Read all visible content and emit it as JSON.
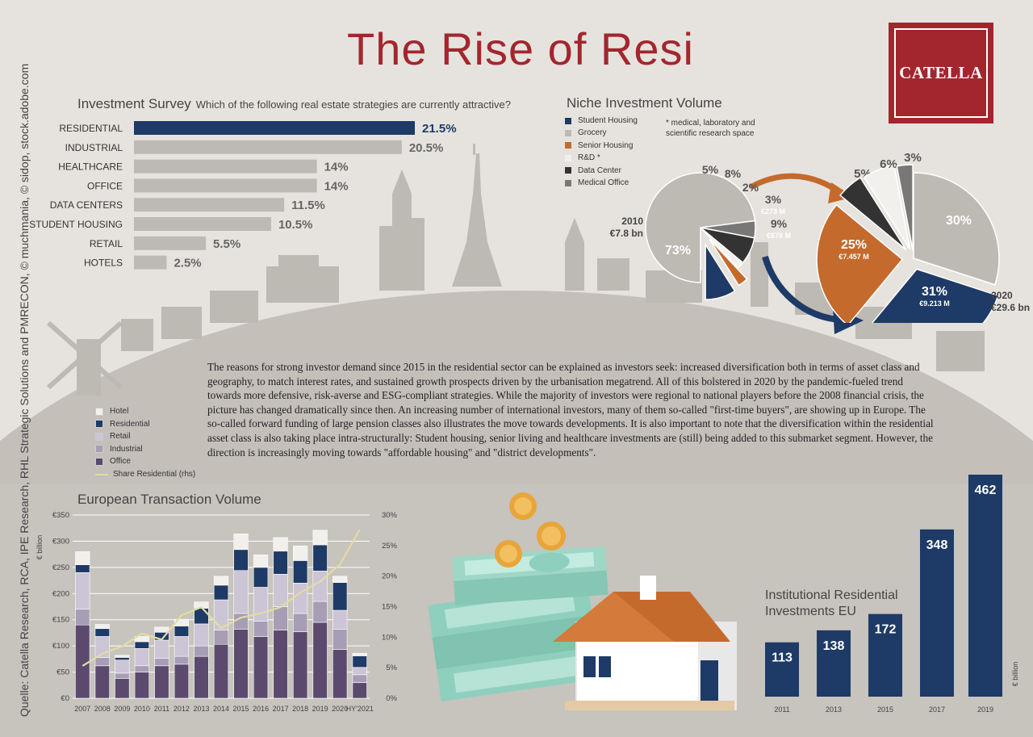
{
  "title": "The Rise of Resi",
  "logo_text": "CATELLA",
  "credit": "Quelle: Catella Research, RCA, IPE Research, RHL Strategic Solutions and PMRECON, © muchmania, © sidop, stock.adobe.com",
  "colors": {
    "accent": "#a3262e",
    "navy": "#1e3a66",
    "grey": "#bdb9b3",
    "orange": "#c56a2d",
    "purple": "#5b4a6e",
    "lavender": "#a79db5",
    "gold": "#e3dca2"
  },
  "survey": {
    "title": "Investment Survey",
    "question": "Which of the following real estate strategies are currently attractive?"
  },
  "niche": {
    "title": "Niche Investment Volume",
    "note": "* medical, laboratory and scientific research space",
    "legend": [
      {
        "label": "Student Housing",
        "color": "#1e3a66"
      },
      {
        "label": "Grocery",
        "color": "#bdb9b3"
      },
      {
        "label": "Senior Housing",
        "color": "#c56a2d"
      },
      {
        "label": "R&D *",
        "color": "#f2f0ec"
      },
      {
        "label": "Data Center",
        "color": "#333333"
      },
      {
        "label": "Medical Office",
        "color": "#7a7876"
      }
    ]
  },
  "paragraph": "The reasons for strong investor demand since 2015 in the residential sector can be explained as investors seek: increased diversification both in terms of asset class and geography, to match interest rates, and sustained growth prospects driven by the urbanisation megatrend. All of this bolstered in 2020 by the pandemic-fueled trend towards more defensive, risk-averse and ESG-compliant strategies. While the majority of investors were regional to national players before the 2008 financial crisis, the picture has changed dramatically since then. An increasing number of international investors, many of them so-called \"first-time buyers\", are showing up in Europe. The so-called forward funding of large pension classes also illustrates the move towards developments. It is also important to note that the diversification within the residential asset class is also taking place intra-structurally: Student housing, senior living and healthcare investments are (still) being added to this submarket segment. However, the direction is increasingly moving towards \"affordable housing\" and \"district developments\".",
  "transaction": {
    "title": "European Transaction Volume",
    "legend": [
      {
        "label": "Hotel",
        "color": "#f2f0ec",
        "kind": "box"
      },
      {
        "label": "Residential",
        "color": "#1e3a66",
        "kind": "box"
      },
      {
        "label": "Retail",
        "color": "#cbc5d6",
        "kind": "box"
      },
      {
        "label": "Industrial",
        "color": "#a79db5",
        "kind": "box"
      },
      {
        "label": "Office",
        "color": "#5b4a6e",
        "kind": "box"
      },
      {
        "label": "Share Residential (rhs)",
        "color": "#e3dca2",
        "kind": "line"
      }
    ]
  },
  "institutional": {
    "title_line1": "Institutional Residential",
    "title_line2": "Investments EU"
  },
  "chart_data": [
    {
      "type": "bar",
      "orientation": "horizontal",
      "title": "Investment Survey",
      "subtitle": "Which of the following real estate strategies are currently attractive?",
      "categories": [
        "RESIDENTIAL",
        "INDUSTRIAL",
        "HEALTHCARE",
        "OFFICE",
        "DATA CENTERS",
        "STUDENT HOUSING",
        "RETAIL",
        "HOTELS"
      ],
      "values": [
        21.5,
        20.5,
        14,
        14,
        11.5,
        10.5,
        5.5,
        2.5
      ],
      "labels": [
        "21.5%",
        "20.5%",
        "14%",
        "14%",
        "11.5%",
        "10.5%",
        "5.5%",
        "2.5%"
      ],
      "highlight_color": "#1e3a66",
      "color": "#bdb9b3"
    },
    {
      "type": "pie",
      "title": "Niche Investment Volume",
      "year": "2010",
      "total": "€7.8 bn",
      "slices": [
        {
          "name": "Grocery",
          "value": 73,
          "label": "73%",
          "color": "#bdb9b3"
        },
        {
          "name": "Medical Office",
          "value": 5,
          "label": "5%",
          "color": "#7a7876"
        },
        {
          "name": "Data Center",
          "value": 8,
          "label": "8%",
          "color": "#333333"
        },
        {
          "name": "R&D *",
          "value": 2,
          "label": "2%",
          "color": "#f2f0ec"
        },
        {
          "name": "Senior Housing",
          "value": 3,
          "label": "3%",
          "sublabel": "€273 M",
          "color": "#c56a2d"
        },
        {
          "name": "Student Housing",
          "value": 9,
          "label": "9%",
          "sublabel": "€678 M",
          "color": "#1e3a66"
        }
      ]
    },
    {
      "type": "pie",
      "title": "Niche Investment Volume",
      "year": "2020",
      "total": "€29.6 bn",
      "slices": [
        {
          "name": "Grocery",
          "value": 30,
          "label": "30%",
          "color": "#bdb9b3"
        },
        {
          "name": "Student Housing",
          "value": 31,
          "label": "31%",
          "sublabel": "€9.213 M",
          "color": "#1e3a66"
        },
        {
          "name": "Senior Housing",
          "value": 25,
          "label": "25%",
          "sublabel": "€7.457 M",
          "color": "#c56a2d"
        },
        {
          "name": "Data Center",
          "value": 5,
          "label": "5%",
          "color": "#333333"
        },
        {
          "name": "R&D *",
          "value": 6,
          "label": "6%",
          "color": "#f2f0ec"
        },
        {
          "name": "Medical Office",
          "value": 3,
          "label": "3%",
          "color": "#7a7876"
        }
      ]
    },
    {
      "type": "bar",
      "stacked": true,
      "title": "European Transaction Volume",
      "ylabel": "€ billion",
      "categories": [
        "2007",
        "2008",
        "2009",
        "2010",
        "2011",
        "2012",
        "2013",
        "2014",
        "2015",
        "2016",
        "2017",
        "2018",
        "2019",
        "2020",
        "HY'2021"
      ],
      "yticks": [
        "€0",
        "€50",
        "€100",
        "€150",
        "€200",
        "€250",
        "€300",
        "€350"
      ],
      "y2ticks": [
        "0%",
        "5%",
        "10%",
        "15%",
        "20%",
        "25%",
        "30%"
      ],
      "ylim": [
        0,
        350
      ],
      "y2lim": [
        0,
        30
      ],
      "series": [
        {
          "name": "Office",
          "color": "#5b4a6e",
          "values": [
            140,
            62,
            38,
            50,
            62,
            65,
            80,
            103,
            132,
            118,
            130,
            127,
            145,
            93,
            30
          ]
        },
        {
          "name": "Industrial",
          "color": "#a79db5",
          "values": [
            30,
            16,
            10,
            12,
            14,
            15,
            20,
            27,
            30,
            29,
            45,
            35,
            40,
            39,
            15
          ]
        },
        {
          "name": "Retail",
          "color": "#cbc5d6",
          "values": [
            70,
            40,
            25,
            33,
            35,
            38,
            42,
            58,
            82,
            65,
            62,
            58,
            58,
            36,
            14
          ]
        },
        {
          "name": "Residential",
          "color": "#1e3a66",
          "values": [
            15,
            15,
            5,
            13,
            15,
            20,
            30,
            28,
            40,
            38,
            44,
            43,
            50,
            53,
            22
          ]
        },
        {
          "name": "Hotel",
          "color": "#f2f0ec",
          "values": [
            25,
            8,
            4,
            10,
            10,
            13,
            12,
            17,
            30,
            24,
            26,
            28,
            28,
            12,
            5
          ]
        }
      ],
      "line": {
        "name": "Share Residential (rhs)",
        "color": "#e3dca2",
        "values": [
          5.3,
          7.3,
          8.5,
          10.6,
          9.6,
          13.6,
          14.9,
          11.5,
          13.2,
          13.9,
          14.9,
          17.3,
          19.1,
          21.9,
          27.6
        ]
      }
    },
    {
      "type": "bar",
      "title": "Institutional Residential Investments EU",
      "ylabel": "€ billion",
      "categories": [
        "2011",
        "2013",
        "2015",
        "2017",
        "2019"
      ],
      "values": [
        113,
        138,
        172,
        348,
        462
      ],
      "color": "#1e3a66"
    }
  ]
}
